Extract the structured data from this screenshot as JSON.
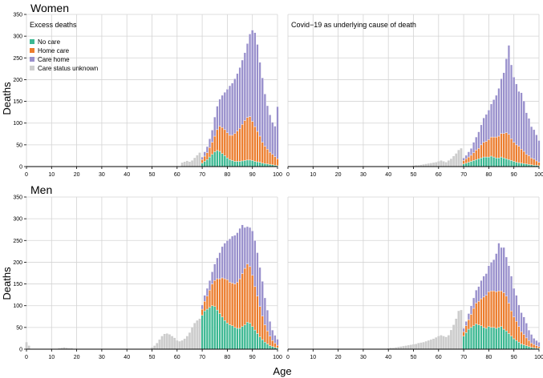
{
  "labels": {
    "row_titles": [
      "Women",
      "Men"
    ],
    "panel_titles": [
      "Excess deaths",
      "Covid−19 as underlying cause of death"
    ],
    "ylabel": "Deaths",
    "xlabel": "Age"
  },
  "legend": [
    {
      "name": "No care",
      "color": "#3cb892"
    },
    {
      "name": "Home care",
      "color": "#ec7d2e"
    },
    {
      "name": "Care home",
      "color": "#9990cc"
    },
    {
      "name": "Care status unknown",
      "color": "#cdcdcd"
    }
  ],
  "chart_data": [
    {
      "type": "bar",
      "stacked": true,
      "title": "Excess deaths",
      "row": "Women",
      "xlabel": "Age",
      "ylabel": "Deaths",
      "xlim": [
        0,
        100
      ],
      "ylim": [
        0,
        350
      ],
      "xticks": [
        0,
        10,
        20,
        30,
        40,
        50,
        60,
        70,
        80,
        90,
        100
      ],
      "yticks": [
        0,
        50,
        100,
        150,
        200,
        250,
        300,
        350
      ],
      "grid": true,
      "legend": "top-left",
      "unknown_segment": {
        "x": [
          62,
          63,
          64,
          65,
          66,
          67,
          68,
          69
        ],
        "values": [
          9,
          11,
          13,
          11,
          14,
          20,
          26,
          32
        ]
      },
      "x": [
        70,
        71,
        72,
        73,
        74,
        75,
        76,
        77,
        78,
        79,
        80,
        81,
        82,
        83,
        84,
        85,
        86,
        87,
        88,
        89,
        90,
        91,
        92,
        93,
        94,
        95,
        96,
        97,
        98,
        99,
        100
      ],
      "series": [
        {
          "name": "No care",
          "values": [
            8,
            12,
            16,
            22,
            28,
            34,
            37,
            35,
            30,
            25,
            20,
            16,
            14,
            12,
            12,
            12,
            13,
            14,
            15,
            15,
            14,
            12,
            11,
            10,
            8,
            7,
            6,
            5,
            4,
            3,
            2
          ]
        },
        {
          "name": "Home care",
          "values": [
            8,
            12,
            16,
            22,
            28,
            36,
            48,
            58,
            60,
            60,
            58,
            56,
            58,
            64,
            70,
            76,
            84,
            92,
            98,
            100,
            90,
            80,
            70,
            60,
            48,
            40,
            34,
            28,
            24,
            20,
            16
          ]
        },
        {
          "name": "Care home",
          "values": [
            6,
            10,
            14,
            20,
            28,
            44,
            54,
            62,
            74,
            86,
            100,
            114,
            120,
            126,
            132,
            140,
            148,
            156,
            170,
            190,
            210,
            216,
            200,
            170,
            148,
            120,
            100,
            86,
            74,
            70,
            120
          ]
        }
      ]
    },
    {
      "type": "bar",
      "stacked": true,
      "title": "Covid−19 as underlying cause of death",
      "row": "Women",
      "xlabel": "Age",
      "ylabel": "Deaths",
      "xlim": [
        0,
        100
      ],
      "ylim": [
        0,
        350
      ],
      "xticks": [
        0,
        10,
        20,
        30,
        40,
        50,
        60,
        70,
        80,
        90,
        100
      ],
      "yticks": [
        0,
        50,
        100,
        150,
        200,
        250,
        300,
        350
      ],
      "grid": true,
      "unknown_segment": {
        "x": [
          50,
          51,
          52,
          53,
          54,
          55,
          56,
          57,
          58,
          59,
          60,
          61,
          62,
          63,
          64,
          65,
          66,
          67,
          68,
          69
        ],
        "values": [
          2,
          3,
          3,
          4,
          5,
          6,
          7,
          8,
          9,
          10,
          12,
          14,
          12,
          10,
          14,
          18,
          24,
          30,
          38,
          42
        ]
      },
      "x": [
        70,
        71,
        72,
        73,
        74,
        75,
        76,
        77,
        78,
        79,
        80,
        81,
        82,
        83,
        84,
        85,
        86,
        87,
        88,
        89,
        90,
        91,
        92,
        93,
        94,
        95,
        96,
        97,
        98,
        99,
        100
      ],
      "series": [
        {
          "name": "No care",
          "values": [
            6,
            8,
            10,
            12,
            14,
            16,
            18,
            20,
            22,
            22,
            22,
            24,
            22,
            20,
            20,
            22,
            20,
            18,
            16,
            14,
            12,
            10,
            9,
            8,
            7,
            6,
            5,
            4,
            3,
            3,
            2
          ]
        },
        {
          "name": "Home care",
          "values": [
            8,
            10,
            12,
            14,
            18,
            22,
            24,
            30,
            34,
            36,
            40,
            44,
            46,
            48,
            50,
            54,
            56,
            60,
            58,
            50,
            44,
            40,
            38,
            32,
            28,
            22,
            20,
            16,
            14,
            10,
            8
          ]
        },
        {
          "name": "Care home",
          "values": [
            6,
            8,
            12,
            16,
            24,
            30,
            38,
            46,
            56,
            62,
            68,
            76,
            86,
            96,
            110,
            126,
            140,
            170,
            205,
            170,
            150,
            140,
            126,
            130,
            116,
            96,
            86,
            72,
            68,
            60,
            50
          ]
        }
      ]
    },
    {
      "type": "bar",
      "stacked": true,
      "title": "",
      "row": "Men",
      "xlabel": "Age",
      "ylabel": "Deaths",
      "xlim": [
        0,
        100
      ],
      "ylim": [
        0,
        350
      ],
      "xticks": [
        0,
        10,
        20,
        30,
        40,
        50,
        60,
        70,
        80,
        90,
        100
      ],
      "yticks": [
        0,
        50,
        100,
        150,
        200,
        250,
        300,
        350
      ],
      "grid": true,
      "unknown_segment": {
        "x": [
          0,
          1,
          13,
          14,
          15,
          16,
          17,
          18,
          50,
          51,
          52,
          53,
          54,
          55,
          56,
          57,
          58,
          59,
          60,
          61,
          62,
          63,
          64,
          65,
          66,
          67,
          68,
          69
        ],
        "values": [
          16,
          8,
          2,
          3,
          4,
          3,
          2,
          2,
          4,
          8,
          14,
          22,
          30,
          35,
          36,
          34,
          30,
          26,
          20,
          18,
          20,
          24,
          30,
          38,
          50,
          60,
          66,
          70
        ]
      },
      "x": [
        70,
        71,
        72,
        73,
        74,
        75,
        76,
        77,
        78,
        79,
        80,
        81,
        82,
        83,
        84,
        85,
        86,
        87,
        88,
        89,
        90,
        91,
        92,
        93,
        94,
        95,
        96,
        97,
        98,
        99,
        100
      ],
      "series": [
        {
          "name": "No care",
          "values": [
            78,
            88,
            92,
            96,
            100,
            98,
            90,
            82,
            74,
            66,
            60,
            56,
            54,
            50,
            48,
            48,
            52,
            56,
            62,
            60,
            52,
            44,
            36,
            28,
            22,
            16,
            12,
            8,
            6,
            4,
            3
          ]
        },
        {
          "name": "Home care",
          "values": [
            14,
            22,
            30,
            40,
            50,
            60,
            72,
            80,
            90,
            96,
            100,
            98,
            98,
            100,
            106,
            114,
            122,
            130,
            134,
            130,
            118,
            100,
            86,
            70,
            54,
            40,
            30,
            22,
            14,
            10,
            6
          ]
        },
        {
          "name": "Care home",
          "values": [
            10,
            14,
            18,
            22,
            28,
            38,
            48,
            60,
            72,
            82,
            90,
            100,
            108,
            112,
            114,
            116,
            112,
            94,
            86,
            90,
            102,
            106,
            100,
            90,
            80,
            62,
            48,
            34,
            24,
            18,
            14
          ]
        }
      ]
    },
    {
      "type": "bar",
      "stacked": true,
      "title": "",
      "row": "Men",
      "xlabel": "Age",
      "ylabel": "Deaths",
      "xlim": [
        0,
        100
      ],
      "ylim": [
        0,
        350
      ],
      "xticks": [
        0,
        10,
        20,
        30,
        40,
        50,
        60,
        70,
        80,
        90,
        100
      ],
      "yticks": [
        0,
        50,
        100,
        150,
        200,
        250,
        300,
        350
      ],
      "grid": true,
      "unknown_segment": {
        "x": [
          40,
          41,
          42,
          43,
          44,
          45,
          46,
          47,
          48,
          49,
          50,
          51,
          52,
          53,
          54,
          55,
          56,
          57,
          58,
          59,
          60,
          61,
          62,
          63,
          64,
          65,
          66,
          67,
          68,
          69
        ],
        "values": [
          2,
          3,
          3,
          4,
          5,
          6,
          7,
          8,
          9,
          10,
          11,
          12,
          14,
          15,
          16,
          18,
          20,
          22,
          24,
          27,
          30,
          32,
          30,
          28,
          32,
          44,
          56,
          70,
          88,
          90
        ]
      },
      "x": [
        70,
        71,
        72,
        73,
        74,
        75,
        76,
        77,
        78,
        79,
        80,
        81,
        82,
        83,
        84,
        85,
        86,
        87,
        88,
        89,
        90,
        91,
        92,
        93,
        94,
        95,
        96,
        97,
        98,
        99,
        100
      ],
      "series": [
        {
          "name": "No care",
          "values": [
            30,
            38,
            46,
            50,
            54,
            58,
            56,
            54,
            50,
            48,
            52,
            50,
            50,
            48,
            50,
            52,
            46,
            42,
            36,
            30,
            24,
            20,
            16,
            12,
            10,
            8,
            6,
            4,
            3,
            2,
            2
          ]
        },
        {
          "name": "Home care",
          "values": [
            10,
            16,
            22,
            30,
            40,
            48,
            54,
            62,
            70,
            76,
            80,
            84,
            84,
            84,
            84,
            82,
            84,
            80,
            70,
            58,
            50,
            44,
            36,
            28,
            24,
            18,
            14,
            10,
            8,
            6,
            4
          ]
        },
        {
          "name": "Care home",
          "values": [
            8,
            10,
            14,
            20,
            24,
            30,
            34,
            42,
            48,
            50,
            60,
            66,
            72,
            88,
            110,
            100,
            104,
            90,
            86,
            80,
            66,
            60,
            50,
            44,
            40,
            34,
            24,
            20,
            14,
            12,
            10
          ]
        }
      ]
    }
  ]
}
